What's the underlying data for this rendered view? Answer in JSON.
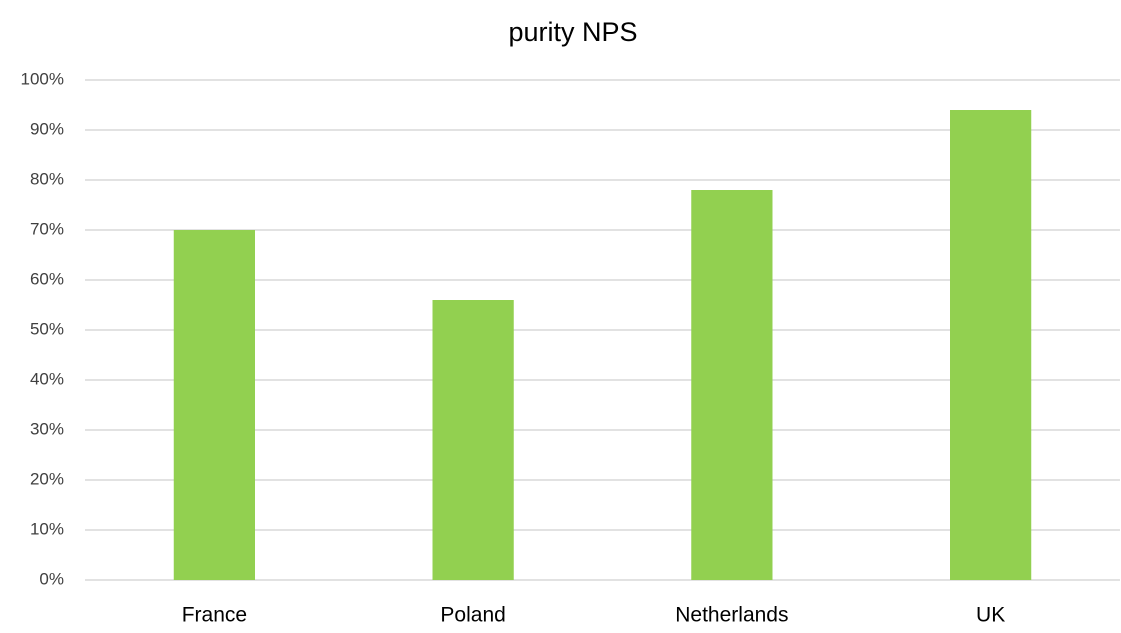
{
  "chart_data": {
    "type": "bar",
    "title": "purity NPS",
    "categories": [
      "France",
      "Poland",
      "Netherlands",
      "UK"
    ],
    "values": [
      70,
      56,
      78,
      94
    ],
    "color": "#92d050",
    "ylim": [
      0,
      100
    ],
    "yticks": [
      {
        "value": 0,
        "label": "0%"
      },
      {
        "value": 10,
        "label": "10%"
      },
      {
        "value": 20,
        "label": "20%"
      },
      {
        "value": 30,
        "label": "30%"
      },
      {
        "value": 40,
        "label": "40%"
      },
      {
        "value": 50,
        "label": "50%"
      },
      {
        "value": 60,
        "label": "60%"
      },
      {
        "value": 70,
        "label": "70%"
      },
      {
        "value": 80,
        "label": "80%"
      },
      {
        "value": 90,
        "label": "90%"
      },
      {
        "value": 100,
        "label": "100%"
      }
    ],
    "grid": true
  }
}
